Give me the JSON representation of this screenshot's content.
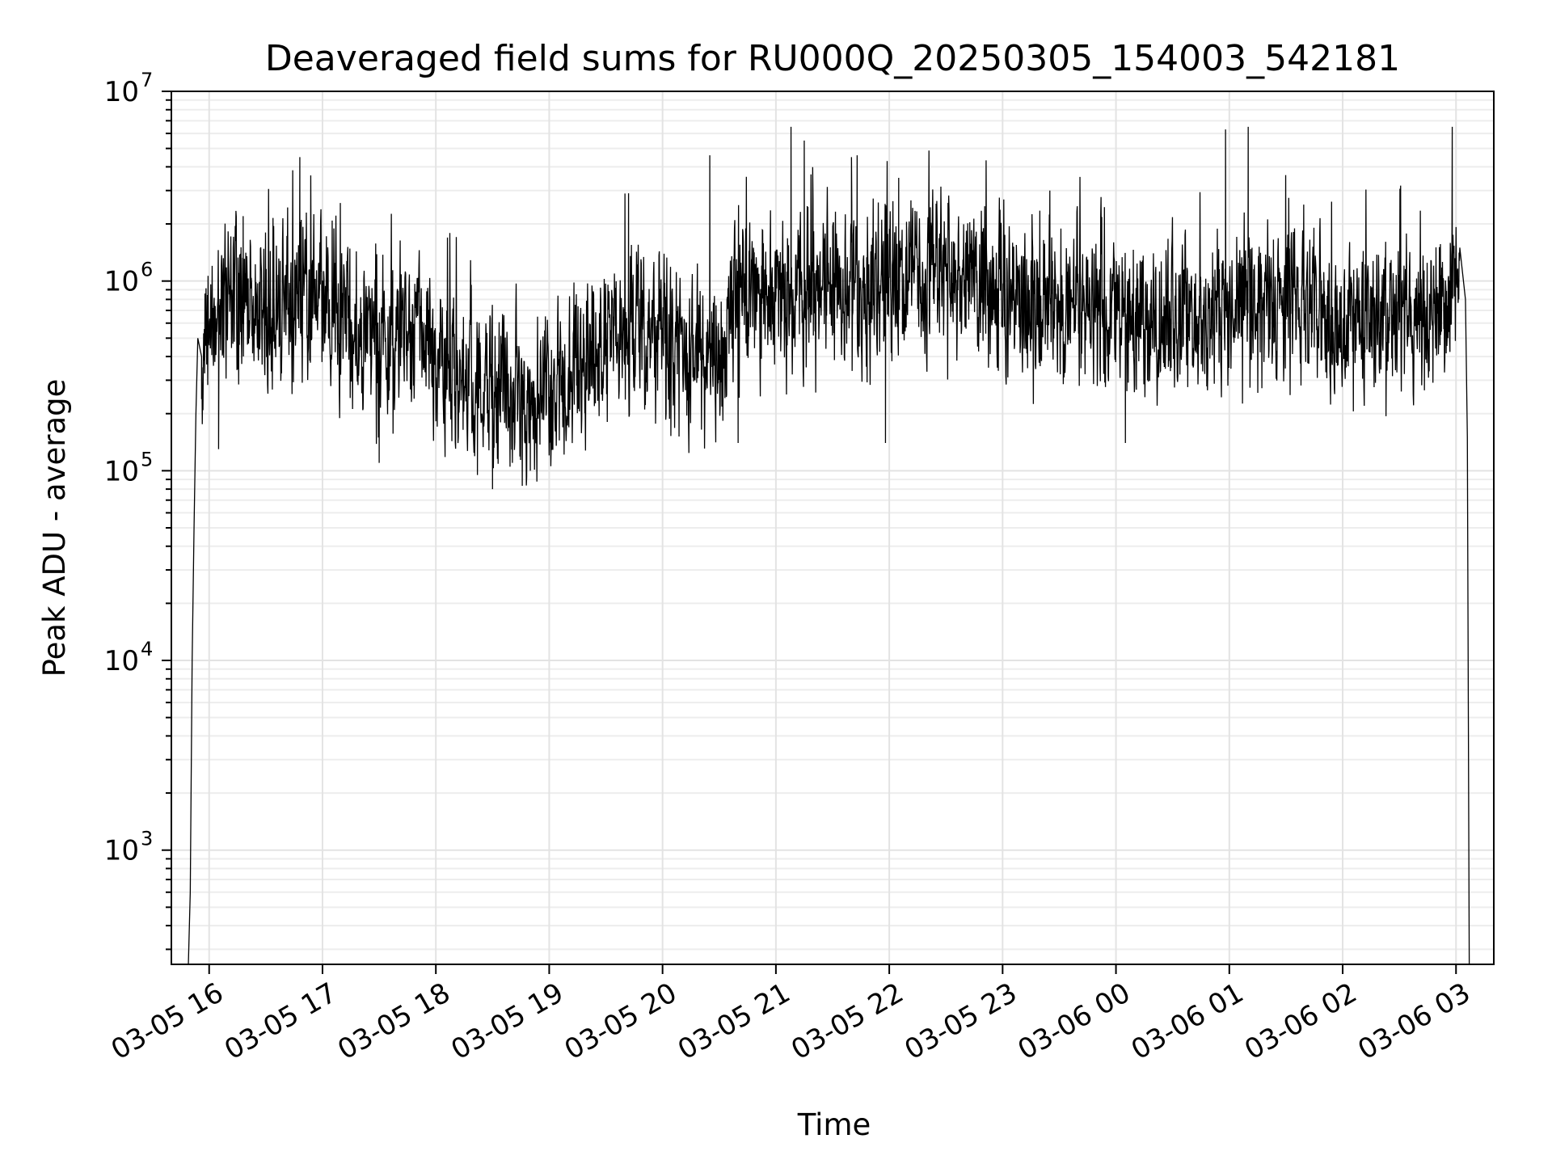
{
  "chart_data": {
    "type": "line",
    "title": "Deaveraged field sums for RU000Q_20250305_154003_542181",
    "xlabel": "Time",
    "ylabel": "Peak ADU - average",
    "yscale": "log",
    "ylim": [
      250,
      10000000
    ],
    "xlim": [
      "2025-03-05 15:40",
      "2025-03-06 03:20"
    ],
    "grid": true,
    "line_color": "#000000",
    "x_ticks": [
      "03-05 16",
      "03-05 17",
      "03-05 18",
      "03-05 19",
      "03-05 20",
      "03-05 21",
      "03-05 22",
      "03-05 23",
      "03-06 00",
      "03-06 01",
      "03-06 02",
      "03-06 03"
    ],
    "y_ticks": [
      {
        "base": "10",
        "exp": "3"
      },
      {
        "base": "10",
        "exp": "4"
      },
      {
        "base": "10",
        "exp": "5"
      },
      {
        "base": "10",
        "exp": "6"
      },
      {
        "base": "10",
        "exp": "7"
      }
    ],
    "series": [
      {
        "x": [
          "2025-03-05 15:49",
          "2025-03-05 15:50",
          "2025-03-05 15:51",
          "2025-03-05 15:52",
          "2025-03-05 15:53",
          "2025-03-05 15:54",
          "2025-03-05 15:56",
          "2025-03-05 15:58",
          "2025-03-05 16:05",
          "2025-03-05 16:15",
          "2025-03-05 16:25",
          "2025-03-05 16:35",
          "2025-03-05 16:45",
          "2025-03-05 16:55",
          "2025-03-05 17:10",
          "2025-03-05 17:25",
          "2025-03-05 17:40",
          "2025-03-05 17:55",
          "2025-03-05 18:10",
          "2025-03-05 18:25",
          "2025-03-05 18:40",
          "2025-03-05 18:55",
          "2025-03-05 19:10",
          "2025-03-05 19:25",
          "2025-03-05 19:40",
          "2025-03-05 19:55",
          "2025-03-05 20:10",
          "2025-03-05 20:25",
          "2025-03-05 20:40",
          "2025-03-05 20:55",
          "2025-03-05 21:10",
          "2025-03-05 21:25",
          "2025-03-05 21:40",
          "2025-03-05 21:55",
          "2025-03-05 22:10",
          "2025-03-05 22:25",
          "2025-03-05 22:40",
          "2025-03-05 22:55",
          "2025-03-05 23:10",
          "2025-03-05 23:25",
          "2025-03-05 23:40",
          "2025-03-05 23:55",
          "2025-03-06 00:10",
          "2025-03-06 00:25",
          "2025-03-06 00:40",
          "2025-03-06 00:55",
          "2025-03-06 01:10",
          "2025-03-06 01:25",
          "2025-03-06 01:40",
          "2025-03-06 01:55",
          "2025-03-06 02:10",
          "2025-03-06 02:25",
          "2025-03-06 02:40",
          "2025-03-06 02:55",
          "2025-03-06 03:02",
          "2025-03-06 03:05",
          "2025-03-06 03:06",
          "2025-03-06 03:07"
        ],
        "values": [
          250,
          600,
          10000,
          50000,
          200000,
          500000,
          400000,
          500000,
          650000,
          1000000,
          900000,
          500000,
          850000,
          900000,
          650000,
          450000,
          550000,
          400000,
          350000,
          300000,
          280000,
          220000,
          300000,
          450000,
          650000,
          550000,
          450000,
          350000,
          800000,
          850000,
          800000,
          950000,
          900000,
          850000,
          1000000,
          1100000,
          1000000,
          1050000,
          750000,
          800000,
          800000,
          850000,
          600000,
          600000,
          650000,
          700000,
          800000,
          750000,
          700000,
          650000,
          650000,
          650000,
          700000,
          750000,
          1500000,
          800000,
          150000,
          250
        ]
      }
    ],
    "peaks": {
      "x": [
        "2025-03-05 16:48",
        "2025-03-05 19:42",
        "2025-03-05 20:25",
        "2025-03-05 21:08",
        "2025-03-05 21:15",
        "2025-03-05 21:40",
        "2025-03-05 21:43",
        "2025-03-06 00:58",
        "2025-03-06 01:10",
        "2025-03-06 02:58",
        "2025-03-05 16:18",
        "2025-03-05 22:05",
        "2025-03-05 23:25"
      ],
      "values": [
        4500000,
        2900000,
        4600000,
        6500000,
        5500000,
        4500000,
        4600000,
        6300000,
        6500000,
        6500000,
        2200000,
        3500000,
        3000000
      ]
    },
    "troughs": {
      "x": [
        "2025-03-05 16:05",
        "2025-03-05 17:30",
        "2025-03-05 18:22",
        "2025-03-05 18:30",
        "2025-03-05 18:50",
        "2025-03-05 20:40",
        "2025-03-05 21:58",
        "2025-03-06 00:05"
      ],
      "values": [
        130000,
        110000,
        95000,
        80000,
        100000,
        140000,
        140000,
        140000
      ]
    }
  }
}
